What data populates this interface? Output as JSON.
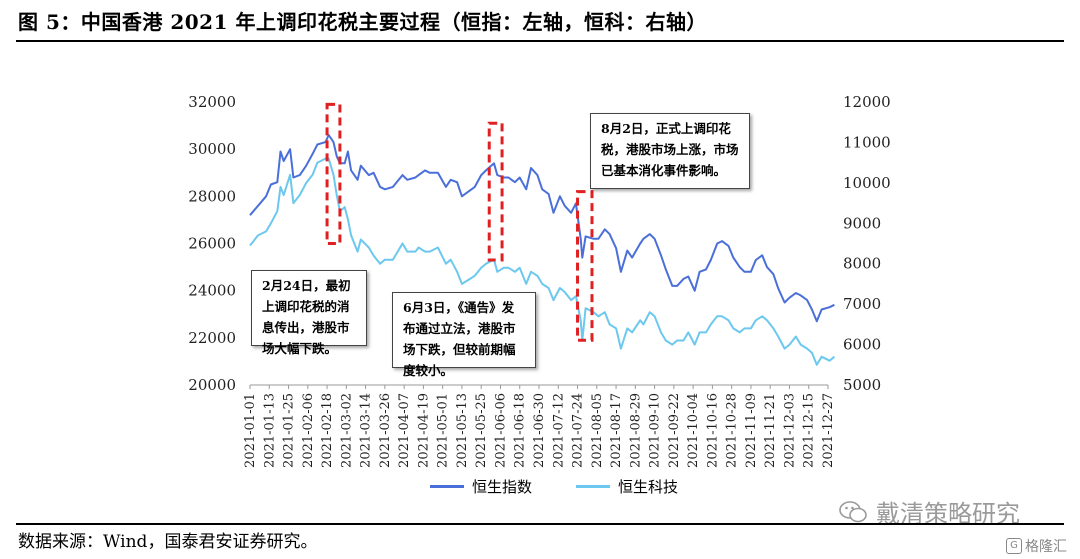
{
  "figure": {
    "title": "图 5：中国香港 2021 年上调印花税主要过程（恒指：左轴，恒科：右轴）",
    "source": "数据来源：Wind，国泰君安证券研究。",
    "watermark": "戴清策略研究",
    "brand": "格隆汇"
  },
  "colors": {
    "hsi": "#4a6fd8",
    "hstech": "#6cc8ee",
    "highlight_box": "#e02020"
  },
  "chart_data": {
    "type": "line",
    "x_ticks": [
      "2021-01-01",
      "2021-01-13",
      "2021-01-25",
      "2021-02-06",
      "2021-02-18",
      "2021-03-02",
      "2021-03-14",
      "2021-03-26",
      "2021-04-07",
      "2021-04-19",
      "2021-05-01",
      "2021-05-13",
      "2021-05-25",
      "2021-06-06",
      "2021-06-18",
      "2021-06-30",
      "2021-07-12",
      "2021-07-24",
      "2021-08-05",
      "2021-08-17",
      "2021-08-29",
      "2021-09-10",
      "2021-09-22",
      "2021-10-04",
      "2021-10-16",
      "2021-10-28",
      "2021-11-09",
      "2021-11-21",
      "2021-12-03",
      "2021-12-15",
      "2021-12-27"
    ],
    "y_left": {
      "min": 20000,
      "max": 32000,
      "ticks": [
        20000,
        22000,
        24000,
        26000,
        28000,
        30000,
        32000
      ]
    },
    "y_right": {
      "min": 5000,
      "max": 12000,
      "ticks": [
        5000,
        6000,
        7000,
        8000,
        9000,
        10000,
        11000,
        12000
      ]
    },
    "legend_position": "bottom",
    "series": [
      {
        "name": "恒生指数",
        "axis": "left",
        "points": [
          [
            "2021-01-01",
            27200
          ],
          [
            "2021-01-06",
            27600
          ],
          [
            "2021-01-11",
            28000
          ],
          [
            "2021-01-14",
            28500
          ],
          [
            "2021-01-18",
            28600
          ],
          [
            "2021-01-20",
            29900
          ],
          [
            "2021-01-22",
            29500
          ],
          [
            "2021-01-26",
            30000
          ],
          [
            "2021-01-28",
            28800
          ],
          [
            "2021-02-01",
            28900
          ],
          [
            "2021-02-05",
            29300
          ],
          [
            "2021-02-09",
            29800
          ],
          [
            "2021-02-12",
            30200
          ],
          [
            "2021-02-17",
            30300
          ],
          [
            "2021-02-19",
            30600
          ],
          [
            "2021-02-22",
            30300
          ],
          [
            "2021-02-24",
            29700
          ],
          [
            "2021-02-26",
            29400
          ],
          [
            "2021-03-01",
            29400
          ],
          [
            "2021-03-03",
            29900
          ],
          [
            "2021-03-05",
            29100
          ],
          [
            "2021-03-09",
            28700
          ],
          [
            "2021-03-11",
            29300
          ],
          [
            "2021-03-16",
            28900
          ],
          [
            "2021-03-19",
            29000
          ],
          [
            "2021-03-23",
            28400
          ],
          [
            "2021-03-26",
            28300
          ],
          [
            "2021-03-31",
            28400
          ],
          [
            "2021-04-06",
            28900
          ],
          [
            "2021-04-09",
            28700
          ],
          [
            "2021-04-14",
            28800
          ],
          [
            "2021-04-16",
            28900
          ],
          [
            "2021-04-20",
            29100
          ],
          [
            "2021-04-23",
            29000
          ],
          [
            "2021-04-28",
            29000
          ],
          [
            "2021-05-03",
            28400
          ],
          [
            "2021-05-06",
            28700
          ],
          [
            "2021-05-10",
            28600
          ],
          [
            "2021-05-13",
            28000
          ],
          [
            "2021-05-17",
            28200
          ],
          [
            "2021-05-21",
            28400
          ],
          [
            "2021-05-25",
            28900
          ],
          [
            "2021-05-28",
            29100
          ],
          [
            "2021-06-02",
            29400
          ],
          [
            "2021-06-04",
            28900
          ],
          [
            "2021-06-08",
            28800
          ],
          [
            "2021-06-11",
            28800
          ],
          [
            "2021-06-15",
            28600
          ],
          [
            "2021-06-18",
            28800
          ],
          [
            "2021-06-22",
            28300
          ],
          [
            "2021-06-25",
            29200
          ],
          [
            "2021-06-29",
            28900
          ],
          [
            "2021-07-02",
            28300
          ],
          [
            "2021-07-06",
            28100
          ],
          [
            "2021-07-09",
            27300
          ],
          [
            "2021-07-13",
            28000
          ],
          [
            "2021-07-16",
            27600
          ],
          [
            "2021-07-20",
            27300
          ],
          [
            "2021-07-23",
            27700
          ],
          [
            "2021-07-26",
            26200
          ],
          [
            "2021-07-27",
            25400
          ],
          [
            "2021-07-29",
            26300
          ],
          [
            "2021-08-03",
            26200
          ],
          [
            "2021-08-06",
            26200
          ],
          [
            "2021-08-10",
            26600
          ],
          [
            "2021-08-13",
            26400
          ],
          [
            "2021-08-17",
            25800
          ],
          [
            "2021-08-20",
            24800
          ],
          [
            "2021-08-24",
            25700
          ],
          [
            "2021-08-27",
            25400
          ],
          [
            "2021-09-01",
            26000
          ],
          [
            "2021-09-03",
            26200
          ],
          [
            "2021-09-07",
            26400
          ],
          [
            "2021-09-10",
            26200
          ],
          [
            "2021-09-14",
            25500
          ],
          [
            "2021-09-17",
            24900
          ],
          [
            "2021-09-21",
            24200
          ],
          [
            "2021-09-24",
            24200
          ],
          [
            "2021-09-28",
            24500
          ],
          [
            "2021-10-01",
            24600
          ],
          [
            "2021-10-05",
            24000
          ],
          [
            "2021-10-08",
            24800
          ],
          [
            "2021-10-12",
            24900
          ],
          [
            "2021-10-15",
            25300
          ],
          [
            "2021-10-19",
            26000
          ],
          [
            "2021-10-22",
            26100
          ],
          [
            "2021-10-26",
            25900
          ],
          [
            "2021-10-29",
            25400
          ],
          [
            "2021-11-02",
            25000
          ],
          [
            "2021-11-05",
            24800
          ],
          [
            "2021-11-09",
            24800
          ],
          [
            "2021-11-12",
            25300
          ],
          [
            "2021-11-16",
            25500
          ],
          [
            "2021-11-19",
            25000
          ],
          [
            "2021-11-23",
            24700
          ],
          [
            "2021-11-26",
            24100
          ],
          [
            "2021-11-30",
            23500
          ],
          [
            "2021-12-03",
            23700
          ],
          [
            "2021-12-07",
            23900
          ],
          [
            "2021-12-10",
            23800
          ],
          [
            "2021-12-14",
            23600
          ],
          [
            "2021-12-17",
            23200
          ],
          [
            "2021-12-20",
            22700
          ],
          [
            "2021-12-23",
            23200
          ],
          [
            "2021-12-28",
            23300
          ],
          [
            "2021-12-31",
            23400
          ]
        ]
      },
      {
        "name": "恒生科技",
        "axis": "right",
        "points": [
          [
            "2021-01-01",
            8450
          ],
          [
            "2021-01-06",
            8700
          ],
          [
            "2021-01-11",
            8800
          ],
          [
            "2021-01-14",
            9000
          ],
          [
            "2021-01-18",
            9300
          ],
          [
            "2021-01-20",
            9900
          ],
          [
            "2021-01-22",
            9700
          ],
          [
            "2021-01-26",
            10200
          ],
          [
            "2021-01-28",
            9500
          ],
          [
            "2021-02-01",
            9700
          ],
          [
            "2021-02-05",
            10000
          ],
          [
            "2021-02-09",
            10200
          ],
          [
            "2021-02-12",
            10500
          ],
          [
            "2021-02-17",
            10600
          ],
          [
            "2021-02-19",
            10600
          ],
          [
            "2021-02-22",
            10200
          ],
          [
            "2021-02-24",
            9700
          ],
          [
            "2021-02-26",
            9300
          ],
          [
            "2021-03-01",
            9400
          ],
          [
            "2021-03-03",
            9100
          ],
          [
            "2021-03-05",
            8700
          ],
          [
            "2021-03-09",
            8300
          ],
          [
            "2021-03-11",
            8600
          ],
          [
            "2021-03-16",
            8400
          ],
          [
            "2021-03-19",
            8200
          ],
          [
            "2021-03-23",
            8000
          ],
          [
            "2021-03-26",
            8100
          ],
          [
            "2021-03-31",
            8100
          ],
          [
            "2021-04-06",
            8500
          ],
          [
            "2021-04-09",
            8300
          ],
          [
            "2021-04-14",
            8300
          ],
          [
            "2021-04-16",
            8400
          ],
          [
            "2021-04-20",
            8300
          ],
          [
            "2021-04-23",
            8300
          ],
          [
            "2021-04-28",
            8400
          ],
          [
            "2021-05-03",
            8000
          ],
          [
            "2021-05-06",
            8100
          ],
          [
            "2021-05-10",
            7800
          ],
          [
            "2021-05-13",
            7500
          ],
          [
            "2021-05-17",
            7600
          ],
          [
            "2021-05-21",
            7700
          ],
          [
            "2021-05-25",
            7900
          ],
          [
            "2021-05-28",
            8000
          ],
          [
            "2021-06-02",
            8100
          ],
          [
            "2021-06-04",
            7800
          ],
          [
            "2021-06-08",
            7900
          ],
          [
            "2021-06-11",
            7900
          ],
          [
            "2021-06-15",
            7800
          ],
          [
            "2021-06-18",
            7900
          ],
          [
            "2021-06-22",
            7500
          ],
          [
            "2021-06-25",
            7800
          ],
          [
            "2021-06-29",
            7700
          ],
          [
            "2021-07-02",
            7500
          ],
          [
            "2021-07-06",
            7400
          ],
          [
            "2021-07-09",
            7100
          ],
          [
            "2021-07-13",
            7400
          ],
          [
            "2021-07-16",
            7300
          ],
          [
            "2021-07-20",
            7100
          ],
          [
            "2021-07-23",
            7200
          ],
          [
            "2021-07-26",
            6600
          ],
          [
            "2021-07-27",
            6100
          ],
          [
            "2021-07-29",
            6900
          ],
          [
            "2021-08-03",
            6800
          ],
          [
            "2021-08-06",
            6700
          ],
          [
            "2021-08-10",
            6800
          ],
          [
            "2021-08-13",
            6500
          ],
          [
            "2021-08-17",
            6400
          ],
          [
            "2021-08-20",
            5900
          ],
          [
            "2021-08-24",
            6400
          ],
          [
            "2021-08-27",
            6300
          ],
          [
            "2021-09-01",
            6600
          ],
          [
            "2021-09-03",
            6500
          ],
          [
            "2021-09-07",
            6800
          ],
          [
            "2021-09-10",
            6700
          ],
          [
            "2021-09-14",
            6300
          ],
          [
            "2021-09-17",
            6100
          ],
          [
            "2021-09-21",
            6000
          ],
          [
            "2021-09-24",
            6100
          ],
          [
            "2021-09-28",
            6100
          ],
          [
            "2021-10-01",
            6300
          ],
          [
            "2021-10-05",
            6000
          ],
          [
            "2021-10-08",
            6300
          ],
          [
            "2021-10-12",
            6300
          ],
          [
            "2021-10-15",
            6500
          ],
          [
            "2021-10-19",
            6700
          ],
          [
            "2021-10-22",
            6700
          ],
          [
            "2021-10-26",
            6600
          ],
          [
            "2021-10-29",
            6400
          ],
          [
            "2021-11-02",
            6300
          ],
          [
            "2021-11-05",
            6400
          ],
          [
            "2021-11-09",
            6400
          ],
          [
            "2021-11-12",
            6600
          ],
          [
            "2021-11-16",
            6700
          ],
          [
            "2021-11-19",
            6600
          ],
          [
            "2021-11-23",
            6400
          ],
          [
            "2021-11-26",
            6200
          ],
          [
            "2021-11-30",
            5900
          ],
          [
            "2021-12-03",
            6000
          ],
          [
            "2021-12-07",
            6200
          ],
          [
            "2021-12-10",
            6000
          ],
          [
            "2021-12-14",
            5900
          ],
          [
            "2021-12-17",
            5800
          ],
          [
            "2021-12-20",
            5500
          ],
          [
            "2021-12-23",
            5700
          ],
          [
            "2021-12-28",
            5600
          ],
          [
            "2021-12-31",
            5700
          ]
        ]
      }
    ],
    "highlight_boxes": [
      {
        "from": "2021-02-18",
        "to": "2021-02-26",
        "y_top": 31900,
        "y_bottom": 26000
      },
      {
        "from": "2021-05-30",
        "to": "2021-06-07",
        "y_top": 31100,
        "y_bottom": 25300
      },
      {
        "from": "2021-07-24",
        "to": "2021-08-02",
        "y_top": 28200,
        "y_bottom": 21900
      }
    ],
    "annotations": [
      {
        "id": "ann-feb",
        "text": "2月24日，最初上调印花税的消息传出，港股市场大幅下跌。"
      },
      {
        "id": "ann-jun",
        "text": "6月3日，《通告》发布通过立法，港股市场下跌，但较前期幅度较小。"
      },
      {
        "id": "ann-aug",
        "text": "8月2日，正式上调印花税，港股市场上涨，市场已基本消化事件影响。"
      }
    ]
  }
}
